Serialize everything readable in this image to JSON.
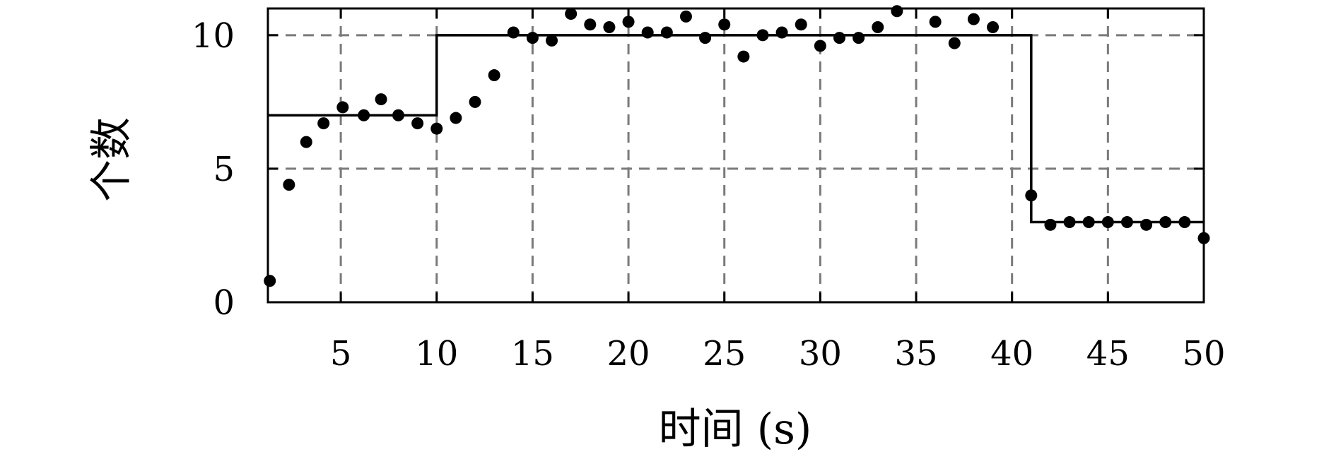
{
  "page": {
    "background": "#ffffff"
  },
  "chart_data": {
    "type": "scatter",
    "title": "",
    "xlabel": "时间 (s)",
    "ylabel": "个数",
    "xlim": [
      1.2,
      50
    ],
    "ylim": [
      0,
      11
    ],
    "x_ticks": [
      5,
      10,
      15,
      20,
      25,
      30,
      35,
      40,
      45,
      50
    ],
    "y_ticks": [
      0,
      5,
      10
    ],
    "grid": {
      "style": "dashed",
      "color": "#7a7a7a",
      "x_lines": [
        5,
        10,
        15,
        20,
        25,
        30,
        35,
        40,
        45
      ],
      "y_lines": [
        5,
        10
      ]
    },
    "colors": {
      "points": "#000000",
      "step_line": "#000000",
      "frame": "#000000"
    },
    "series": [
      {
        "type": "scatter",
        "points": [
          [
            1.3,
            0.8
          ],
          [
            2.3,
            4.4
          ],
          [
            3.2,
            6.0
          ],
          [
            4.1,
            6.7
          ],
          [
            5.1,
            7.3
          ],
          [
            6.2,
            7.0
          ],
          [
            7.1,
            7.6
          ],
          [
            8,
            7.0
          ],
          [
            9,
            6.7
          ],
          [
            10,
            6.5
          ],
          [
            11,
            6.9
          ],
          [
            12,
            7.5
          ],
          [
            13,
            8.5
          ],
          [
            14,
            10.1
          ],
          [
            15,
            9.9
          ],
          [
            16,
            9.8
          ],
          [
            17,
            10.8
          ],
          [
            18,
            10.4
          ],
          [
            19,
            10.3
          ],
          [
            20,
            10.5
          ],
          [
            21,
            10.1
          ],
          [
            22,
            10.1
          ],
          [
            23,
            10.7
          ],
          [
            24,
            9.9
          ],
          [
            25,
            10.4
          ],
          [
            26,
            9.2
          ],
          [
            27,
            10.0
          ],
          [
            28,
            10.1
          ],
          [
            29,
            10.4
          ],
          [
            30,
            9.6
          ],
          [
            31,
            9.9
          ],
          [
            32,
            9.9
          ],
          [
            33,
            10.3
          ],
          [
            34,
            10.9
          ],
          [
            36,
            10.5
          ],
          [
            37,
            9.7
          ],
          [
            38,
            10.6
          ],
          [
            39,
            10.3
          ],
          [
            41,
            4.0
          ],
          [
            42,
            2.9
          ],
          [
            43,
            3.0
          ],
          [
            44,
            3.0
          ],
          [
            45,
            3.0
          ],
          [
            46,
            3.0
          ],
          [
            47,
            2.9
          ],
          [
            48,
            3.0
          ],
          [
            49,
            3.0
          ],
          [
            50,
            2.4
          ]
        ]
      },
      {
        "type": "step-line",
        "path": [
          [
            1.2,
            7
          ],
          [
            10,
            7
          ],
          [
            10,
            10
          ],
          [
            41,
            10
          ],
          [
            41,
            3
          ],
          [
            50,
            3
          ]
        ]
      }
    ]
  }
}
